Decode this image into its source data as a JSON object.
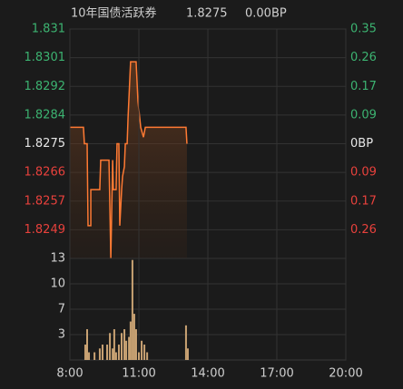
{
  "header": {
    "name": "10年国债活跃券",
    "last": 1.8275,
    "change": "0.00BP"
  },
  "chart_data": [
    {
      "type": "line",
      "x": [
        8.0,
        8.59,
        8.63,
        8.75,
        8.79,
        8.91,
        8.91,
        9.3,
        9.34,
        9.7,
        9.78,
        9.86,
        9.89,
        10.01,
        10.05,
        10.13,
        10.17,
        10.25,
        10.29,
        10.37,
        10.41,
        10.49,
        10.53,
        10.64,
        10.88,
        10.96,
        11.08,
        11.2,
        11.28,
        13.05,
        13.09
      ],
      "values": [
        1.828,
        1.828,
        1.8275,
        1.8275,
        1.825,
        1.825,
        1.8261,
        1.8261,
        1.827,
        1.827,
        1.824,
        1.827,
        1.8261,
        1.8261,
        1.8275,
        1.8275,
        1.825,
        1.8261,
        1.8265,
        1.8268,
        1.8275,
        1.8275,
        1.8283,
        1.83,
        1.83,
        1.8288,
        1.828,
        1.8277,
        1.828,
        1.828,
        1.8275
      ],
      "color": "#ff7a33",
      "xlim": [
        8,
        20
      ],
      "ylim": [
        1.824,
        1.831
      ],
      "yticks": [
        1.831,
        {
          "value": 1.830125,
          "label": "1.8301"
        },
        {
          "value": 1.82925,
          "label": "1.8292"
        },
        {
          "value": 1.828375,
          "label": "1.8284"
        },
        1.8275,
        {
          "value": 1.826625,
          "label": "1.8266"
        },
        {
          "value": 1.82575,
          "label": "1.8257"
        },
        {
          "value": 1.824875,
          "label": "1.8249"
        }
      ],
      "y2lim": [
        -0.35,
        0.35
      ],
      "y2ticks": [
        0.35,
        {
          "value": 0.2625,
          "label": "0.26"
        },
        {
          "value": 0.175,
          "label": "0.17"
        },
        {
          "value": 0.0875,
          "label": "0.09"
        },
        {
          "value": 0,
          "label": "0BP"
        },
        {
          "value": -0.0875,
          "label": "0.09"
        },
        {
          "value": -0.175,
          "label": "0.17"
        },
        {
          "value": -0.2625,
          "label": "0.26"
        }
      ],
      "grid": true
    },
    {
      "type": "bar",
      "x": [
        8.67,
        8.75,
        8.83,
        9.07,
        9.3,
        9.42,
        9.62,
        9.74,
        9.86,
        9.93,
        10.01,
        10.13,
        10.25,
        10.37,
        10.45,
        10.57,
        10.64,
        10.72,
        10.8,
        10.88,
        11.0,
        11.12,
        11.24,
        11.36,
        13.05,
        13.13
      ],
      "values": [
        2,
        4,
        1,
        1,
        1.5,
        2,
        2,
        3.5,
        1.5,
        4,
        1,
        2,
        3.5,
        4,
        2.5,
        3,
        5,
        13,
        6,
        4,
        1,
        2.5,
        2,
        1,
        4.5,
        1.5
      ],
      "color": "#c9a273",
      "xlim": [
        8,
        20
      ],
      "xticks": [
        {
          "value": 8,
          "label": "8:00"
        },
        {
          "value": 11,
          "label": "11:00"
        },
        {
          "value": 14,
          "label": "14:00"
        },
        {
          "value": 17,
          "label": "17:00"
        },
        {
          "value": 20,
          "label": "20:00"
        }
      ],
      "ylim": [
        0,
        13.2
      ],
      "yticks": [
        {
          "value": 13.2,
          "label": "13"
        },
        {
          "value": 9.9,
          "label": "10"
        },
        {
          "value": 6.6,
          "label": "7"
        },
        {
          "value": 3.3,
          "label": "3"
        }
      ],
      "grid": true
    }
  ]
}
